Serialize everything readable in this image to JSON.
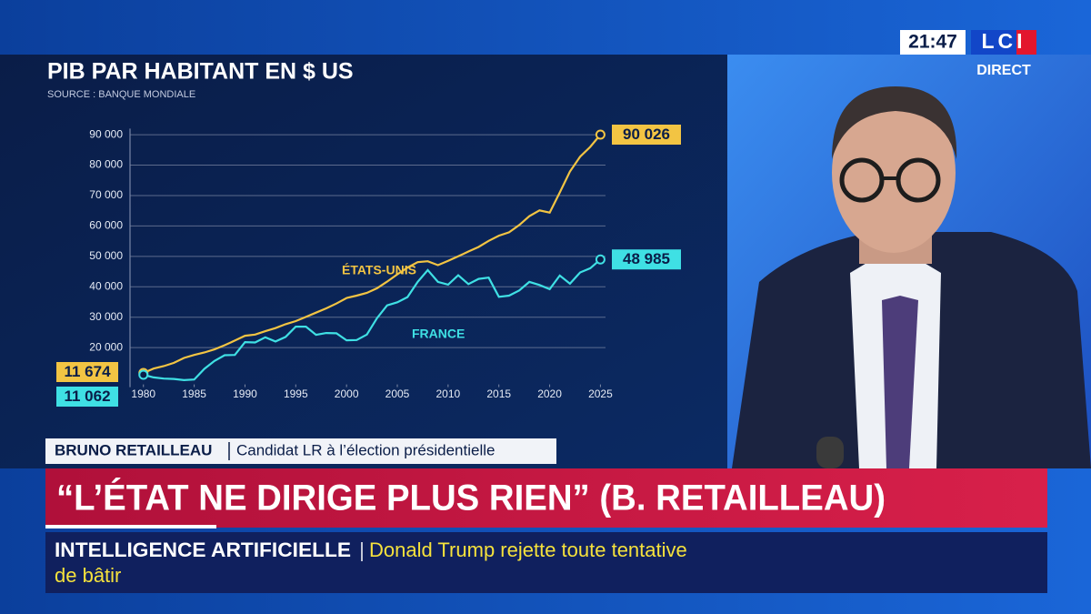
{
  "chart_data": {
    "type": "line",
    "title": "PIB PAR HABITANT EN $ US",
    "subtitle": "SOURCE : BANQUE MONDIALE",
    "x": [
      1980,
      1981,
      1982,
      1983,
      1984,
      1985,
      1986,
      1987,
      1988,
      1989,
      1990,
      1991,
      1992,
      1993,
      1994,
      1995,
      1996,
      1997,
      1998,
      1999,
      2000,
      2001,
      2002,
      2003,
      2004,
      2005,
      2006,
      2007,
      2008,
      2009,
      2010,
      2011,
      2012,
      2013,
      2014,
      2015,
      2016,
      2017,
      2018,
      2019,
      2020,
      2021,
      2022,
      2023,
      2024,
      2025
    ],
    "series": [
      {
        "name": "ÉTATS-UNIS",
        "color": "#f2c443",
        "values": [
          11674,
          13100,
          13900,
          15000,
          16600,
          17600,
          18400,
          19400,
          20800,
          22300,
          23900,
          24300,
          25400,
          26400,
          27700,
          28700,
          30100,
          31500,
          32900,
          34500,
          36300,
          37100,
          38000,
          39500,
          41700,
          44100,
          46300,
          48100,
          48400,
          47100,
          48500,
          50000,
          51600,
          53100,
          55100,
          56800,
          57900,
          60300,
          63200,
          65100,
          64400,
          71000,
          77900,
          82800,
          86000,
          90026
        ],
        "value_labels": [
          "11 674",
          null,
          null,
          null,
          null,
          null,
          null,
          null,
          null,
          null,
          null,
          null,
          null,
          null,
          null,
          null,
          null,
          null,
          null,
          null,
          null,
          null,
          null,
          null,
          null,
          null,
          null,
          null,
          null,
          null,
          null,
          null,
          null,
          null,
          null,
          null,
          null,
          null,
          null,
          null,
          null,
          null,
          null,
          null,
          null,
          "90 026"
        ]
      },
      {
        "name": "FRANCE",
        "color": "#3fe0e4",
        "values": [
          11062,
          10200,
          9800,
          9700,
          9300,
          9500,
          13000,
          15600,
          17500,
          17600,
          21800,
          21700,
          23400,
          22000,
          23500,
          26900,
          26900,
          24200,
          24800,
          24700,
          22400,
          22500,
          24300,
          29700,
          33900,
          34900,
          36600,
          41600,
          45500,
          41600,
          40700,
          43800,
          40900,
          42600,
          43000,
          36700,
          37100,
          38800,
          41600,
          40600,
          39200,
          43700,
          41000,
          44700,
          46100,
          48985
        ],
        "value_labels": [
          "11 062",
          null,
          null,
          null,
          null,
          null,
          null,
          null,
          null,
          null,
          null,
          null,
          null,
          null,
          null,
          null,
          null,
          null,
          null,
          null,
          null,
          null,
          null,
          null,
          null,
          null,
          null,
          null,
          null,
          null,
          null,
          null,
          null,
          null,
          null,
          null,
          null,
          null,
          null,
          null,
          null,
          null,
          null,
          null,
          null,
          "48 985"
        ]
      }
    ],
    "xlim": [
      1978.5,
      2025.5
    ],
    "xticks": [
      1980,
      1985,
      1990,
      1995,
      2000,
      2005,
      2010,
      2015,
      2020,
      2025
    ],
    "ylim": [
      7000,
      92000
    ],
    "yticks": [
      {
        "value": 20000,
        "label": "20 000"
      },
      {
        "value": 30000,
        "label": "30 000"
      },
      {
        "value": 40000,
        "label": "40 000"
      },
      {
        "value": 50000,
        "label": "50 000"
      },
      {
        "value": 60000,
        "label": "60 000"
      },
      {
        "value": 70000,
        "label": "70 000"
      },
      {
        "value": 80000,
        "label": "80 000"
      },
      {
        "value": 90000,
        "label": "90 000"
      }
    ],
    "grid": true
  },
  "broadcast": {
    "time": "21:47",
    "channel": "LCI",
    "live": "DIRECT",
    "guest_name": "BRUNO RETAILLEAU",
    "guest_role": "Candidat LR à l’élection présidentielle",
    "headline": "“L’ÉTAT NE DIRIGE PLUS RIEN” (B. RETAILLEAU)",
    "ticker_topic": "INTELLIGENCE ARTIFICIELLE",
    "ticker_lines": [
      "Donald Trump rejette toute tentative",
      "de bâtir"
    ]
  }
}
